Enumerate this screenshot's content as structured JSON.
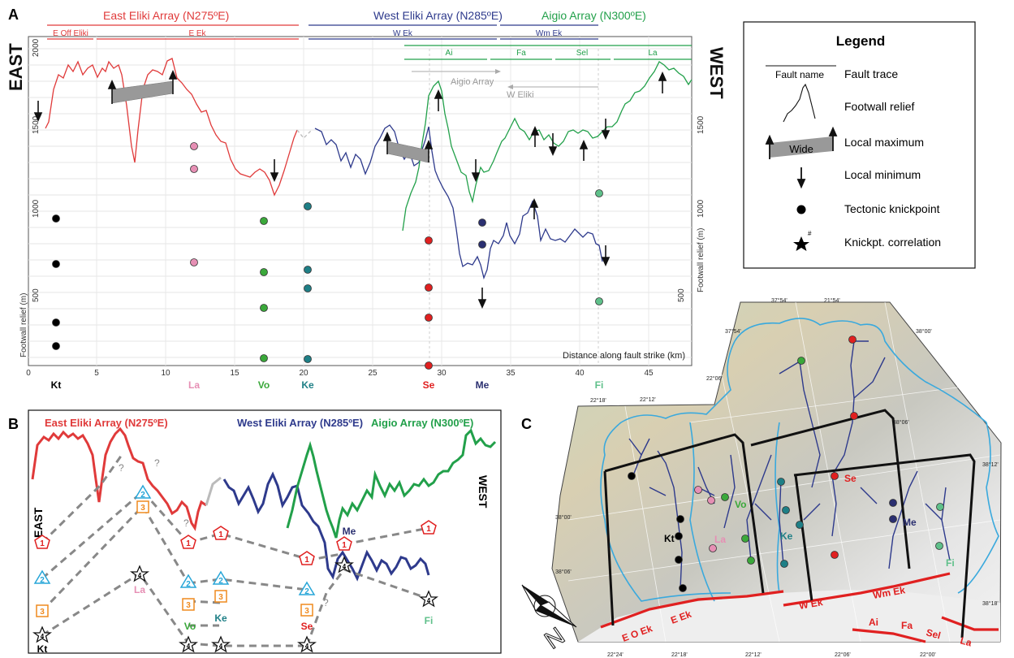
{
  "panel_a": {
    "letter": "A",
    "east": "EAST",
    "west": "WEST",
    "arrays": [
      {
        "label": "East Eliki Array (N275ºE)",
        "color": "#e03a3a"
      },
      {
        "label": "West Eliki Array (N285ºE)",
        "color": "#2e3a8c"
      },
      {
        "label": "Aigio Array (N300ºE)",
        "color": "#22a04a"
      }
    ],
    "segments": [
      "E Off Eliki",
      "E Ek",
      "W Ek",
      "Wm Ek",
      "Ai",
      "Fa",
      "Sel",
      "La"
    ],
    "y_label": "Footwall relief (m)",
    "y_ticks_left": [
      "2000",
      "1500",
      "1000",
      "500"
    ],
    "y_ticks_right": [
      "1500",
      "1000",
      "500"
    ],
    "x_ticks": [
      "0",
      "5",
      "10",
      "15",
      "20",
      "25",
      "30",
      "35",
      "40",
      "45"
    ],
    "x_title": "Distance along fault strike (km)",
    "annotation_aigio": "Aigio Array",
    "annotation_weliki": "W Eliki",
    "knickpoint_labels": [
      {
        "text": "Kt",
        "color": "#000000"
      },
      {
        "text": "La",
        "color": "#e68fb4"
      },
      {
        "text": "Vo",
        "color": "#3aa83a"
      },
      {
        "text": "Ke",
        "color": "#1e7f86"
      },
      {
        "text": "Se",
        "color": "#e02020"
      },
      {
        "text": "Me",
        "color": "#2a2f70"
      },
      {
        "text": "Fi",
        "color": "#5fc08a"
      }
    ]
  },
  "legend": {
    "title": "Legend",
    "fault_name": "Fault  name",
    "items": [
      "Fault trace",
      "Footwall relief",
      "Local maximum",
      "Local minimum",
      "Tectonic knickpoint",
      "Knickpt. correlation"
    ],
    "wide": "Wide",
    "star_mark": "#"
  },
  "panel_b": {
    "letter": "B",
    "east": "EAST",
    "west": "WEST",
    "arrays": [
      "East Eliki Array (N275ºE)",
      "West Eliki Array (N285ºE)",
      "Aigio Array (N300ºE)"
    ],
    "labels": [
      "Kt",
      "La",
      "Vo",
      "Ke",
      "Se",
      "Me",
      "Fi"
    ],
    "pentagon_num": "1",
    "triangle_num": "2",
    "square_num": "3",
    "star_num": "4",
    "question": "?"
  },
  "panel_c": {
    "letter": "C",
    "fault_labels": [
      "E O Ek",
      "E Ek",
      "W Ek",
      "Wm Ek",
      "Ai",
      "Fa",
      "Sel",
      "La"
    ],
    "catchment_labels": [
      "Kt",
      "La",
      "Vo",
      "Ke",
      "Se",
      "Me",
      "Fi"
    ],
    "coords": [
      "37°54'",
      "21°54'",
      "37°54'",
      "38°00'",
      "22°06'",
      "22°18'",
      "22°12'",
      "38°06'",
      "38°12'",
      "38°00'",
      "38°06'",
      "38°18'",
      "22°24'",
      "22°18'",
      "22°12'",
      "22°06'",
      "22°00'"
    ],
    "north": "N"
  }
}
